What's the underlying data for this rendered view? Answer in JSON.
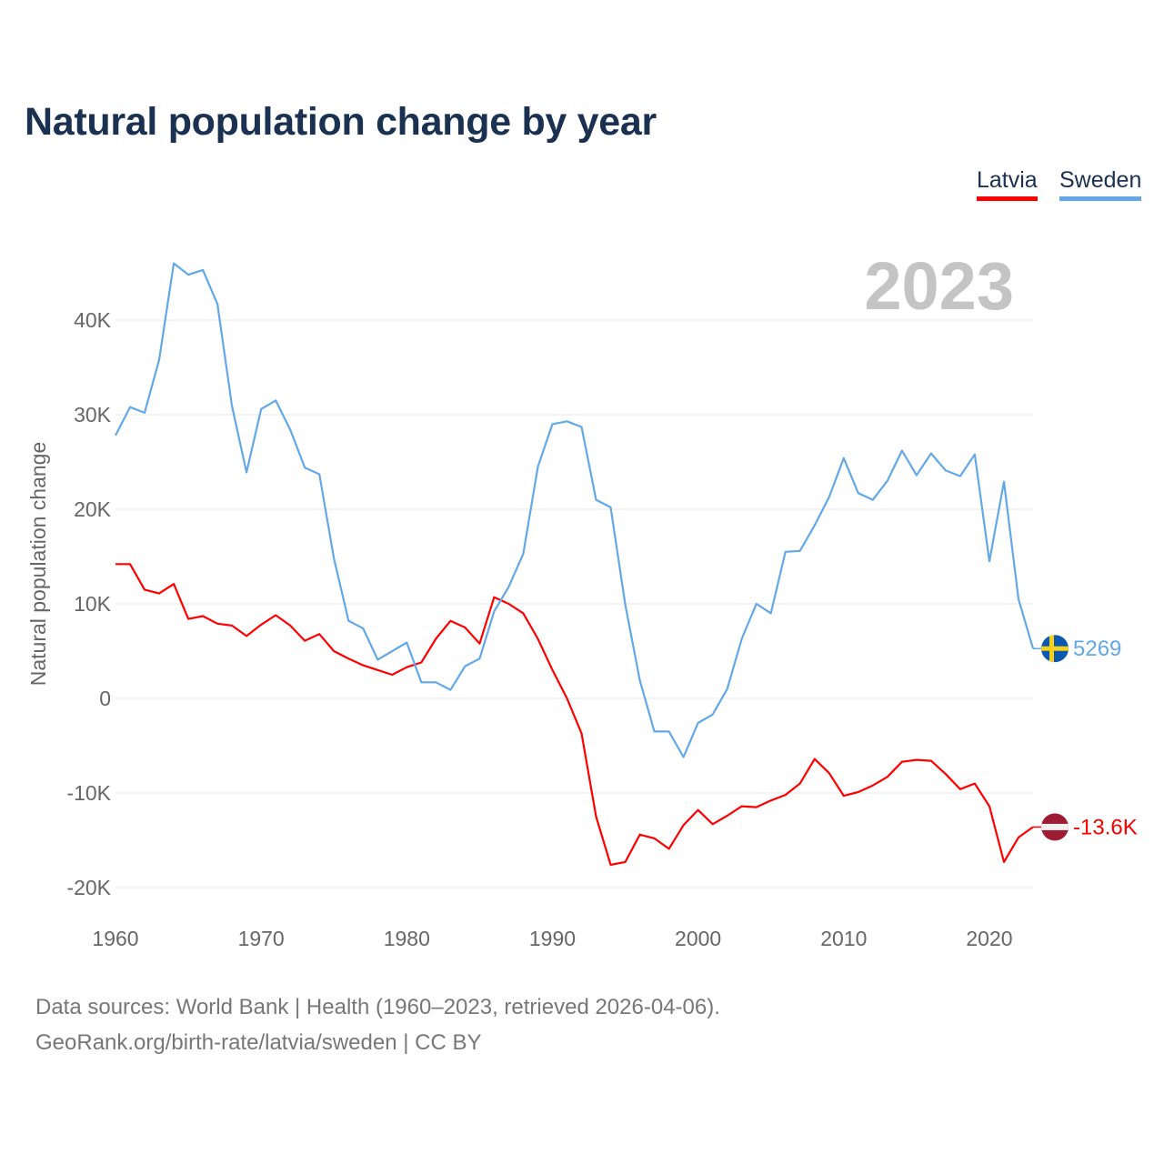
{
  "chart_data": {
    "type": "line",
    "title": "Natural population change by year",
    "ylabel": "Natural population change",
    "xlabel": "",
    "xlim": [
      1960,
      2023
    ],
    "ylim": [
      -20000,
      40000
    ],
    "grid": true,
    "legend_placement": "top-right",
    "current_year_label": "2023",
    "x_ticks": [
      1960,
      1970,
      1980,
      1990,
      2000,
      2010,
      2020
    ],
    "x_tick_labels": [
      "1960",
      "1970",
      "1980",
      "1990",
      "2000",
      "2010",
      "2020"
    ],
    "y_ticks": [
      -20000,
      -10000,
      0,
      10000,
      20000,
      30000,
      40000
    ],
    "y_tick_labels": [
      "-20K",
      "-10K",
      "0",
      "10K",
      "20K",
      "30K",
      "40K"
    ],
    "series": [
      {
        "name": "Latvia",
        "color": "#ff0000",
        "flag": "latvia-flag",
        "end_label": "-13.6K",
        "values": [
          14200,
          14200,
          11500,
          11100,
          12100,
          8400,
          8700,
          7900,
          7700,
          6600,
          7800,
          8800,
          7700,
          6100,
          6800,
          5000,
          4200,
          3500,
          3000,
          2500,
          3300,
          3800,
          6300,
          8200,
          7500,
          5800,
          10700,
          10000,
          9000,
          6300,
          3000,
          0,
          -3700,
          -12500,
          -17600,
          -17300,
          -14400,
          -14800,
          -15900,
          -13400,
          -11800,
          -13300,
          -12400,
          -11400,
          -11500,
          -10800,
          -10200,
          -9000,
          -6400,
          -7900,
          -10300,
          -9900,
          -9200,
          -8300,
          -6700,
          -6500,
          -6600,
          -8000,
          -9600,
          -9000,
          -11400,
          -17300,
          -14700,
          -13600
        ]
      },
      {
        "name": "Sweden",
        "color": "#62a8e8",
        "flag": "sweden-flag",
        "end_label": "5269",
        "values": [
          27800,
          30800,
          30200,
          35800,
          46000,
          44800,
          45300,
          41700,
          30900,
          23900,
          30600,
          31500,
          28400,
          24400,
          23700,
          14800,
          8200,
          7400,
          4100,
          5000,
          5900,
          1700,
          1700,
          900,
          3400,
          4200,
          9200,
          11800,
          15300,
          24500,
          29000,
          29300,
          28700,
          21000,
          20200,
          9900,
          1900,
          -3500,
          -3500,
          -6200,
          -2600,
          -1700,
          1000,
          6300,
          10000,
          9000,
          15500,
          15600,
          18300,
          21300,
          25400,
          21700,
          21000,
          23000,
          26200,
          23600,
          25900,
          24100,
          23500,
          25800,
          14500,
          22900,
          10500,
          5269
        ]
      }
    ],
    "source_line1": "Data sources: World Bank | Health (1960–2023, retrieved 2026-04-06).",
    "source_line2": "GeoRank.org/birth-rate/latvia/sweden | CC BY"
  }
}
